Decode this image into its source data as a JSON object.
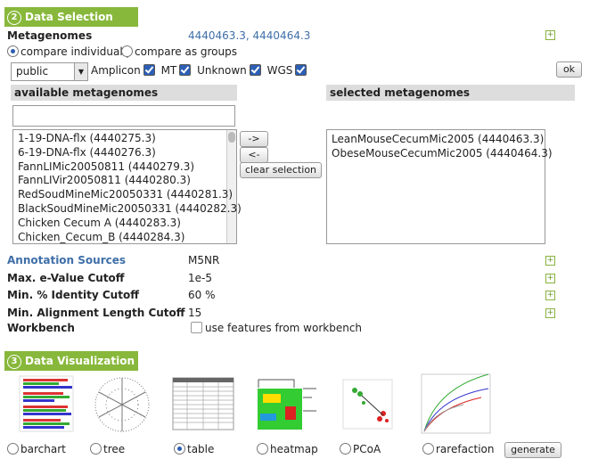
{
  "sections": [
    {
      "number": "2",
      "title": "Data Selection"
    },
    {
      "number": "3",
      "title": "Data Visualization"
    }
  ],
  "metagenomes": {
    "label": "Metagenomes",
    "value": "4440463.3, 4440464.3"
  },
  "compare_options": [
    "compare individually",
    "compare as groups"
  ],
  "source_select": "public",
  "filters": [
    "Amplicon",
    "MT",
    "Unknown",
    "WGS"
  ],
  "ok_button": "ok",
  "available": {
    "header": "available metagenomes",
    "items": [
      "1-19-DNA-flx (4440275.3)",
      "6-19-DNA-flx (4440276.3)",
      "FannLIMic20050811 (4440279.3)",
      "FannLIVir20050811 (4440280.3)",
      "RedSoudMineMic20050331 (4440281.3)",
      "BlackSoudMineMic20050331 (4440282.3)",
      "Chicken Cecum A (4440283.3)",
      "Chicken_Cecum_B (4440284.3)"
    ]
  },
  "buttons": [
    "->",
    "<-",
    "clear selection"
  ],
  "selected": {
    "header": "selected metagenomes",
    "items": [
      "LeanMouseCecumMic2005 (4440463.3)",
      "ObeseMouseCecumMic2005 (4440464.3)"
    ]
  },
  "settings": [
    {
      "label": "Annotation Sources",
      "value": "M5NR"
    },
    {
      "label": "Max. e-Value Cutoff",
      "value": "1e-5"
    },
    {
      "label": "Min. % Identity Cutoff",
      "value": "60 %"
    },
    {
      "label": "Min. Alignment Length Cutoff",
      "value": "15"
    }
  ],
  "workbench": {
    "label": "Workbench",
    "option": "use features from workbench"
  },
  "visualizations": [
    "barchart",
    "tree",
    "table",
    "heatmap",
    "PCoA",
    "rarefaction"
  ],
  "generate_button": "generate"
}
